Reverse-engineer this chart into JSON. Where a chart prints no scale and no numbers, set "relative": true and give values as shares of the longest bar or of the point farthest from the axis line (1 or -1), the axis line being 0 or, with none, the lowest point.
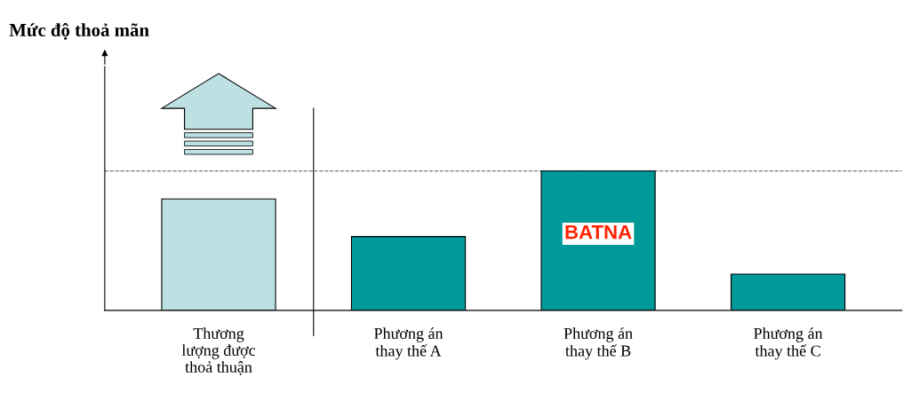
{
  "chart_data": {
    "type": "bar",
    "relative": true,
    "categories": [
      "Thương\nlượng được\nthoả thuận",
      "Phương án\nthay thế A",
      "Phương án\nthay thế B",
      "Phương án\nthay thế C"
    ],
    "values": [
      0.8,
      0.53,
      1,
      0.26
    ],
    "colors": [
      "#bde0e3",
      "#009999",
      "#009999",
      "#009999"
    ],
    "ref_lines": [
      {
        "axis": "y",
        "value": 1,
        "color": "#555555",
        "line_style": "dashed"
      }
    ],
    "annotations": [
      "Mức độ thoả mãn",
      "BATNA"
    ],
    "grid": false
  }
}
